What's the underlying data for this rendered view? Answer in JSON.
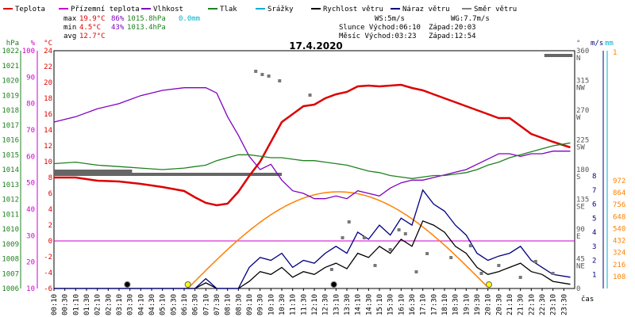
{
  "legend": [
    {
      "label": "Teplota",
      "color": "#dd0000"
    },
    {
      "label": "Přízemní teplota",
      "color": "#cc00cc"
    },
    {
      "label": "Vlhkost",
      "color": "#8000c0"
    },
    {
      "label": "Tlak",
      "color": "#208020"
    },
    {
      "label": "Srážky",
      "color": "#00b0d0"
    },
    {
      "label": "Rychlost větru",
      "color": "#000000"
    },
    {
      "label": "Náraz větru",
      "color": "#000080"
    },
    {
      "label": "Směr větru",
      "color": "#808080"
    }
  ],
  "stats": {
    "max": {
      "label": "max",
      "temp": "19.9°C",
      "hum": "86%",
      "press": "1015.8hPa",
      "rain": "0.0mm"
    },
    "min": {
      "label": "min",
      "temp": "4.5°C",
      "hum": "43%",
      "press": "1013.4hPa"
    },
    "avg": {
      "label": "avg",
      "temp": "12.7°C"
    }
  },
  "info": {
    "ws": "WS:5m/s",
    "wg": "WG:7.7m/s",
    "slunce": "Slunce Východ:06:10",
    "slunce_zapad": "Západ:20:03",
    "mesic": "Měsíc  Východ:03:23",
    "mesic_zapad": "Západ:12:54"
  },
  "chart_data": {
    "type": "line",
    "title": "17.4.2020",
    "xlabel": "čas",
    "x_ticks": [
      "00:10",
      "00:30",
      "01:10",
      "01:30",
      "02:10",
      "02:30",
      "03:10",
      "03:30",
      "04:10",
      "04:30",
      "05:10",
      "05:30",
      "06:10",
      "06:30",
      "07:10",
      "07:30",
      "08:10",
      "08:30",
      "09:10",
      "09:30",
      "10:10",
      "10:30",
      "11:10",
      "11:30",
      "12:10",
      "12:30",
      "13:10",
      "13:30",
      "14:10",
      "14:30",
      "15:10",
      "15:30",
      "16:10",
      "16:30",
      "17:10",
      "17:30",
      "18:10",
      "18:30",
      "19:10",
      "19:30",
      "20:10",
      "20:30",
      "21:10",
      "21:30",
      "22:10",
      "22:30",
      "23:10",
      "23:30"
    ],
    "axes": {
      "hpa": {
        "unit": "hPa",
        "ticks": [
          "1022",
          "1021",
          "1020",
          "1019",
          "1018",
          "1017",
          "1016",
          "1015",
          "1014",
          "1013",
          "1012",
          "1011",
          "1010",
          "1009",
          "1008",
          "1007",
          "1006"
        ]
      },
      "pct": {
        "unit": "%",
        "ticks": [
          "100",
          "90",
          "80",
          "70",
          "60",
          "50",
          "40",
          "30",
          "20",
          "10"
        ]
      },
      "temp": {
        "unit": "°C",
        "ticks": [
          "24",
          "22",
          "20",
          "18",
          "16",
          "14",
          "12",
          "10",
          "8",
          "6",
          "4",
          "2",
          "0",
          "-2",
          "-4",
          "-6"
        ]
      },
      "dir": {
        "unit": "°",
        "ticks": [
          "360",
          "315",
          "270",
          "225",
          "180",
          "135",
          "90",
          "45",
          "0"
        ],
        "labels": [
          "N",
          "NW",
          "W",
          "SW",
          "S",
          "SE",
          "E",
          "NE",
          ""
        ]
      },
      "ms": {
        "unit": "m/s",
        "ticks": [
          "8",
          "7",
          "6",
          "5",
          "4",
          "3",
          "2",
          "1",
          ""
        ]
      },
      "mm": {
        "unit": "mm",
        "ticks": [
          "1",
          "972",
          "864",
          "756",
          "648",
          "540",
          "432",
          "324",
          "216",
          "108"
        ]
      }
    },
    "series": [
      {
        "name": "Teplota",
        "color": "#dd0000",
        "axis": "temp",
        "x": [
          0,
          1,
          2,
          3,
          4,
          5,
          6,
          6.5,
          7,
          7.5,
          8,
          8.5,
          9,
          9.5,
          10,
          10.5,
          11,
          11.5,
          12,
          12.5,
          13,
          13.5,
          14,
          14.5,
          15,
          15.5,
          16,
          16.5,
          17,
          17.5,
          18,
          18.5,
          19,
          19.5,
          20,
          20.5,
          21,
          21.5,
          22,
          22.5,
          23,
          23.8
        ],
        "y": [
          8,
          8,
          7.6,
          7.5,
          7.2,
          6.8,
          6.3,
          5.5,
          4.8,
          4.5,
          4.7,
          6.2,
          8.2,
          10,
          12.5,
          15,
          16,
          17,
          17.2,
          18,
          18.5,
          18.8,
          19.5,
          19.6,
          19.5,
          19.6,
          19.7,
          19.3,
          19,
          18.5,
          18,
          17.5,
          17,
          16.5,
          16,
          15.5,
          15.5,
          14.5,
          13.5,
          13,
          12.5,
          11.8
        ]
      },
      {
        "name": "Vlhkost",
        "color": "#8000c0",
        "axis": "pct",
        "x": [
          0,
          1,
          2,
          3,
          4,
          5,
          6,
          6.5,
          7,
          7.5,
          8,
          8.5,
          9,
          9.5,
          10,
          10.5,
          11,
          11.5,
          12,
          12.5,
          13,
          13.5,
          14,
          14.5,
          15,
          15.5,
          16,
          16.5,
          17,
          17.5,
          18,
          18.5,
          19,
          19.5,
          20,
          20.5,
          21,
          21.5,
          22,
          22.5,
          23,
          23.8
        ],
        "y": [
          73,
          75,
          78,
          80,
          83,
          85,
          86,
          86,
          86,
          84,
          75,
          68,
          60,
          55,
          57,
          51,
          47,
          46,
          44,
          44,
          45,
          44,
          47,
          46,
          45,
          48,
          50,
          51,
          51,
          52,
          53,
          54,
          55,
          57,
          59,
          61,
          61,
          60,
          61,
          61,
          62,
          62
        ]
      },
      {
        "name": "Tlak",
        "color": "#208020",
        "axis": "hpa",
        "x": [
          0,
          1,
          2,
          3,
          4,
          5,
          6,
          6.5,
          7,
          7.5,
          8,
          8.5,
          9,
          9.5,
          10,
          10.5,
          11,
          11.5,
          12,
          12.5,
          13,
          13.5,
          14,
          14.5,
          15,
          15.5,
          16,
          16.5,
          17,
          17.5,
          18,
          18.5,
          19,
          19.5,
          20,
          20.5,
          21,
          21.5,
          22,
          22.5,
          23,
          23.8
        ],
        "y": [
          1014.4,
          1014.5,
          1014.3,
          1014.2,
          1014.1,
          1014.0,
          1014.1,
          1014.2,
          1014.3,
          1014.6,
          1014.8,
          1015.0,
          1015.0,
          1014.9,
          1014.8,
          1014.8,
          1014.7,
          1014.6,
          1014.6,
          1014.5,
          1014.4,
          1014.3,
          1014.1,
          1013.9,
          1013.8,
          1013.6,
          1013.5,
          1013.4,
          1013.5,
          1013.6,
          1013.6,
          1013.7,
          1013.8,
          1014.0,
          1014.3,
          1014.5,
          1014.8,
          1015.0,
          1015.2,
          1015.4,
          1015.6,
          1015.8
        ]
      },
      {
        "name": "Rychlost větru",
        "color": "#000000",
        "axis": "ms",
        "x": [
          0,
          1,
          2,
          3,
          4,
          5,
          6,
          6.5,
          7,
          7.5,
          8,
          8.5,
          9,
          9.5,
          10,
          10.5,
          11,
          11.5,
          12,
          12.5,
          13,
          13.5,
          14,
          14.5,
          15,
          15.5,
          16,
          16.5,
          17,
          17.5,
          18,
          18.5,
          19,
          19.5,
          20,
          20.5,
          21,
          21.5,
          22,
          22.5,
          23,
          23.8
        ],
        "y": [
          0,
          0,
          0,
          0,
          0,
          0,
          0,
          0,
          0.4,
          0,
          0,
          0,
          0.5,
          1.2,
          1.0,
          1.5,
          0.8,
          1.2,
          1.0,
          1.5,
          1.8,
          1.4,
          2.5,
          2.2,
          3,
          2.5,
          3.5,
          3,
          4.8,
          4.5,
          4,
          3,
          2.5,
          1.5,
          1,
          1.2,
          1.5,
          1.8,
          1.2,
          1.0,
          0.5,
          0.3
        ]
      },
      {
        "name": "Náraz větru",
        "color": "#000080",
        "axis": "ms",
        "x": [
          0,
          1,
          2,
          3,
          4,
          5,
          6,
          6.5,
          7,
          7.5,
          8,
          8.5,
          9,
          9.5,
          10,
          10.5,
          11,
          11.5,
          12,
          12.5,
          13,
          13.5,
          14,
          14.5,
          15,
          15.5,
          16,
          16.5,
          17,
          17.5,
          18,
          18.5,
          19,
          19.5,
          20,
          20.5,
          21,
          21.5,
          22,
          22.5,
          23,
          23.8
        ],
        "y": [
          0,
          0,
          0,
          0,
          0,
          0,
          0,
          0,
          0.7,
          0,
          0,
          0,
          1.5,
          2.2,
          2.0,
          2.5,
          1.5,
          2.0,
          1.8,
          2.5,
          3.0,
          2.5,
          4.0,
          3.5,
          4.5,
          3.8,
          5.0,
          4.5,
          7.0,
          6.0,
          5.5,
          4.5,
          3.8,
          2.5,
          2.0,
          2.3,
          2.5,
          3.0,
          2.0,
          1.5,
          1.0,
          0.8
        ]
      },
      {
        "name": "Přízemní teplota",
        "color": "#cc00cc",
        "axis": "temp",
        "x": [
          0,
          24
        ],
        "y": [
          0,
          0
        ]
      }
    ]
  }
}
